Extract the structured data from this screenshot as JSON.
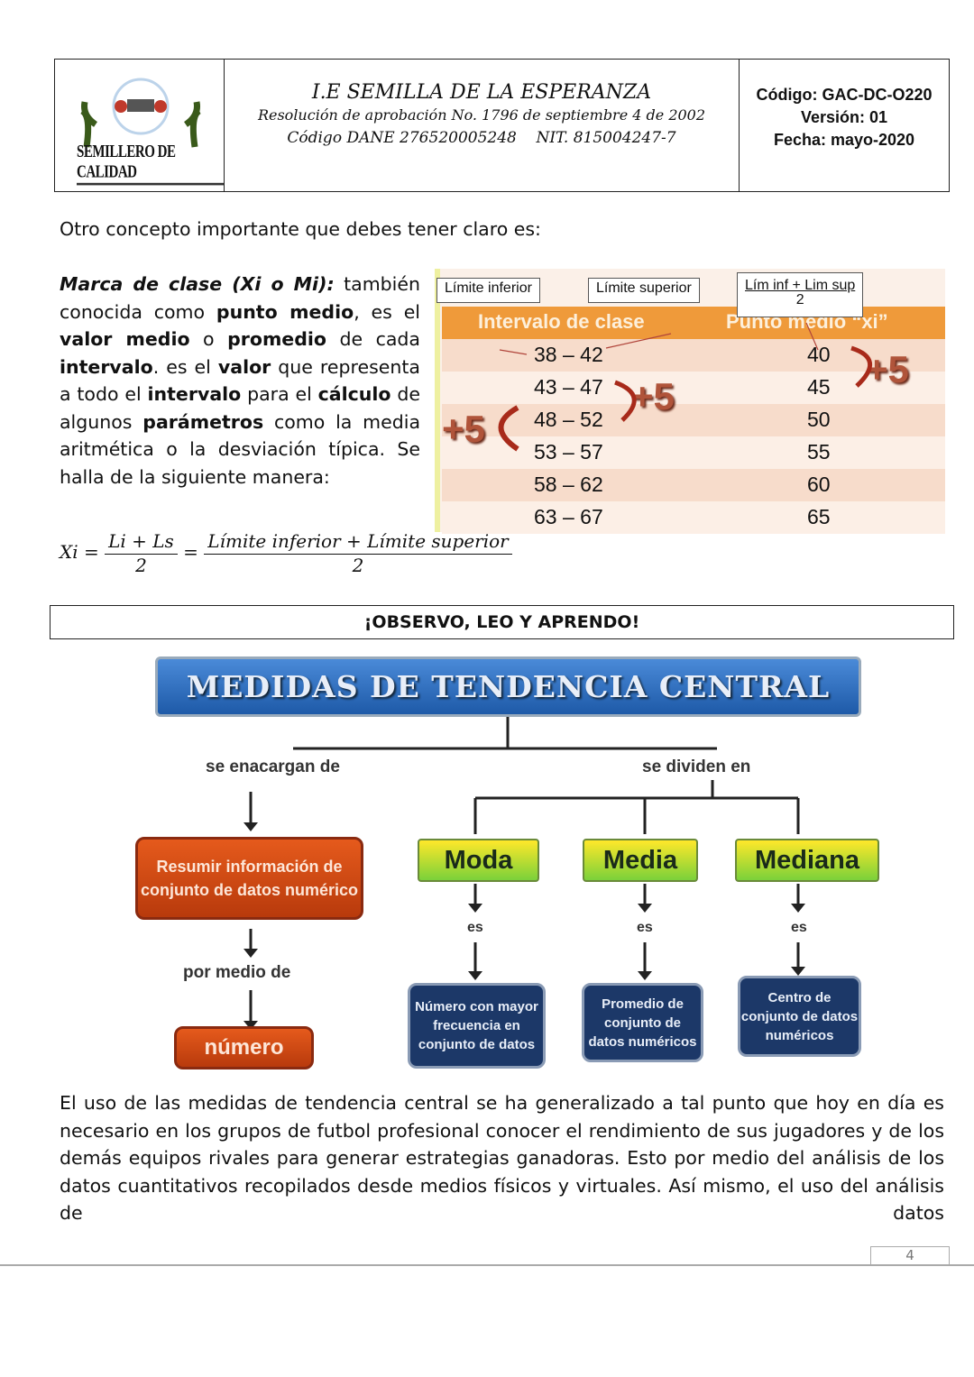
{
  "header": {
    "logo_text": "SEMILLERO DE CALIDAD",
    "title": "I.E SEMILLA DE LA ESPERANZA",
    "resolution": "Resolución de aprobación No. 1796 de septiembre 4 de 2002",
    "dane": "Código DANE 276520005248    NIT. 815004247-7",
    "code": "Código: GAC-DC-O220",
    "version": "Versión: 01",
    "date": "Fecha: mayo-2020"
  },
  "intro": "Otro concepto importante que debes tener claro es:",
  "definition": {
    "term": "Marca de clase (Xi o Mi):",
    "t1": " también conocida como ",
    "b1": "punto medio",
    "t2": ", es el ",
    "b2": "valor medio",
    "t3": " o ",
    "b3": "promedio",
    "t4": " de cada ",
    "b4": "intervalo",
    "t5": ". es el ",
    "b5": "valor",
    "t6": " que representa a todo el ",
    "b6": "intervalo",
    "t7": " para el ",
    "b7": "cálculo",
    "t8": " de algunos ",
    "b8": "parámetros",
    "t9": " como la media aritmética o la desviación típica. Se halla de la siguiente manera:"
  },
  "class_table": {
    "label_lower": "Límite inferior",
    "label_upper": "Límite superior",
    "label_formula_num": "Lím inf + Lim sup",
    "label_formula_den": "2",
    "headers": [
      "Intervalo de clase",
      "Punto medio  “xi”"
    ],
    "rows": [
      [
        "38 – 42",
        "40"
      ],
      [
        "43 – 47",
        "45"
      ],
      [
        "48 – 52",
        "50"
      ],
      [
        "53 – 57",
        "55"
      ],
      [
        "58 – 62",
        "60"
      ],
      [
        "63 – 67",
        "65"
      ]
    ],
    "increment": "+5"
  },
  "formula": {
    "lhs": "Xi =",
    "num1": "Li + Ls",
    "den1": "2",
    "eq": "=",
    "num2": "Límite inferior + Límite superior",
    "den2": "2"
  },
  "section_banner": "¡OBSERVO, LEO Y APRENDO!",
  "diagram": {
    "title": "MEDIDAS DE TENDENCIA CENTRAL",
    "left_link": "se enacargan de",
    "right_link": "se dividen en",
    "summary": "Resumir información de conjunto de datos numérico",
    "by_means": "por medio de",
    "number": "número",
    "is": "es",
    "measures": [
      {
        "name": "Moda",
        "desc": "Número con mayor frecuencia en conjunto de datos"
      },
      {
        "name": "Media",
        "desc": "Promedio de conjunto de datos numéricos"
      },
      {
        "name": "Mediana",
        "desc": "Centro de conjunto de datos numéricos"
      }
    ]
  },
  "body": "El uso de las medidas de tendencia central se ha generalizado a tal punto que hoy en día es necesario en los grupos de futbol profesional conocer el rendimiento de sus jugadores y de los demás equipos rivales para generar estrategias ganadoras. Esto por medio del análisis de los datos cuantitativos recopilados desde medios físicos y virtuales. Así mismo, el uso del análisis de datos",
  "page_number": "4"
}
